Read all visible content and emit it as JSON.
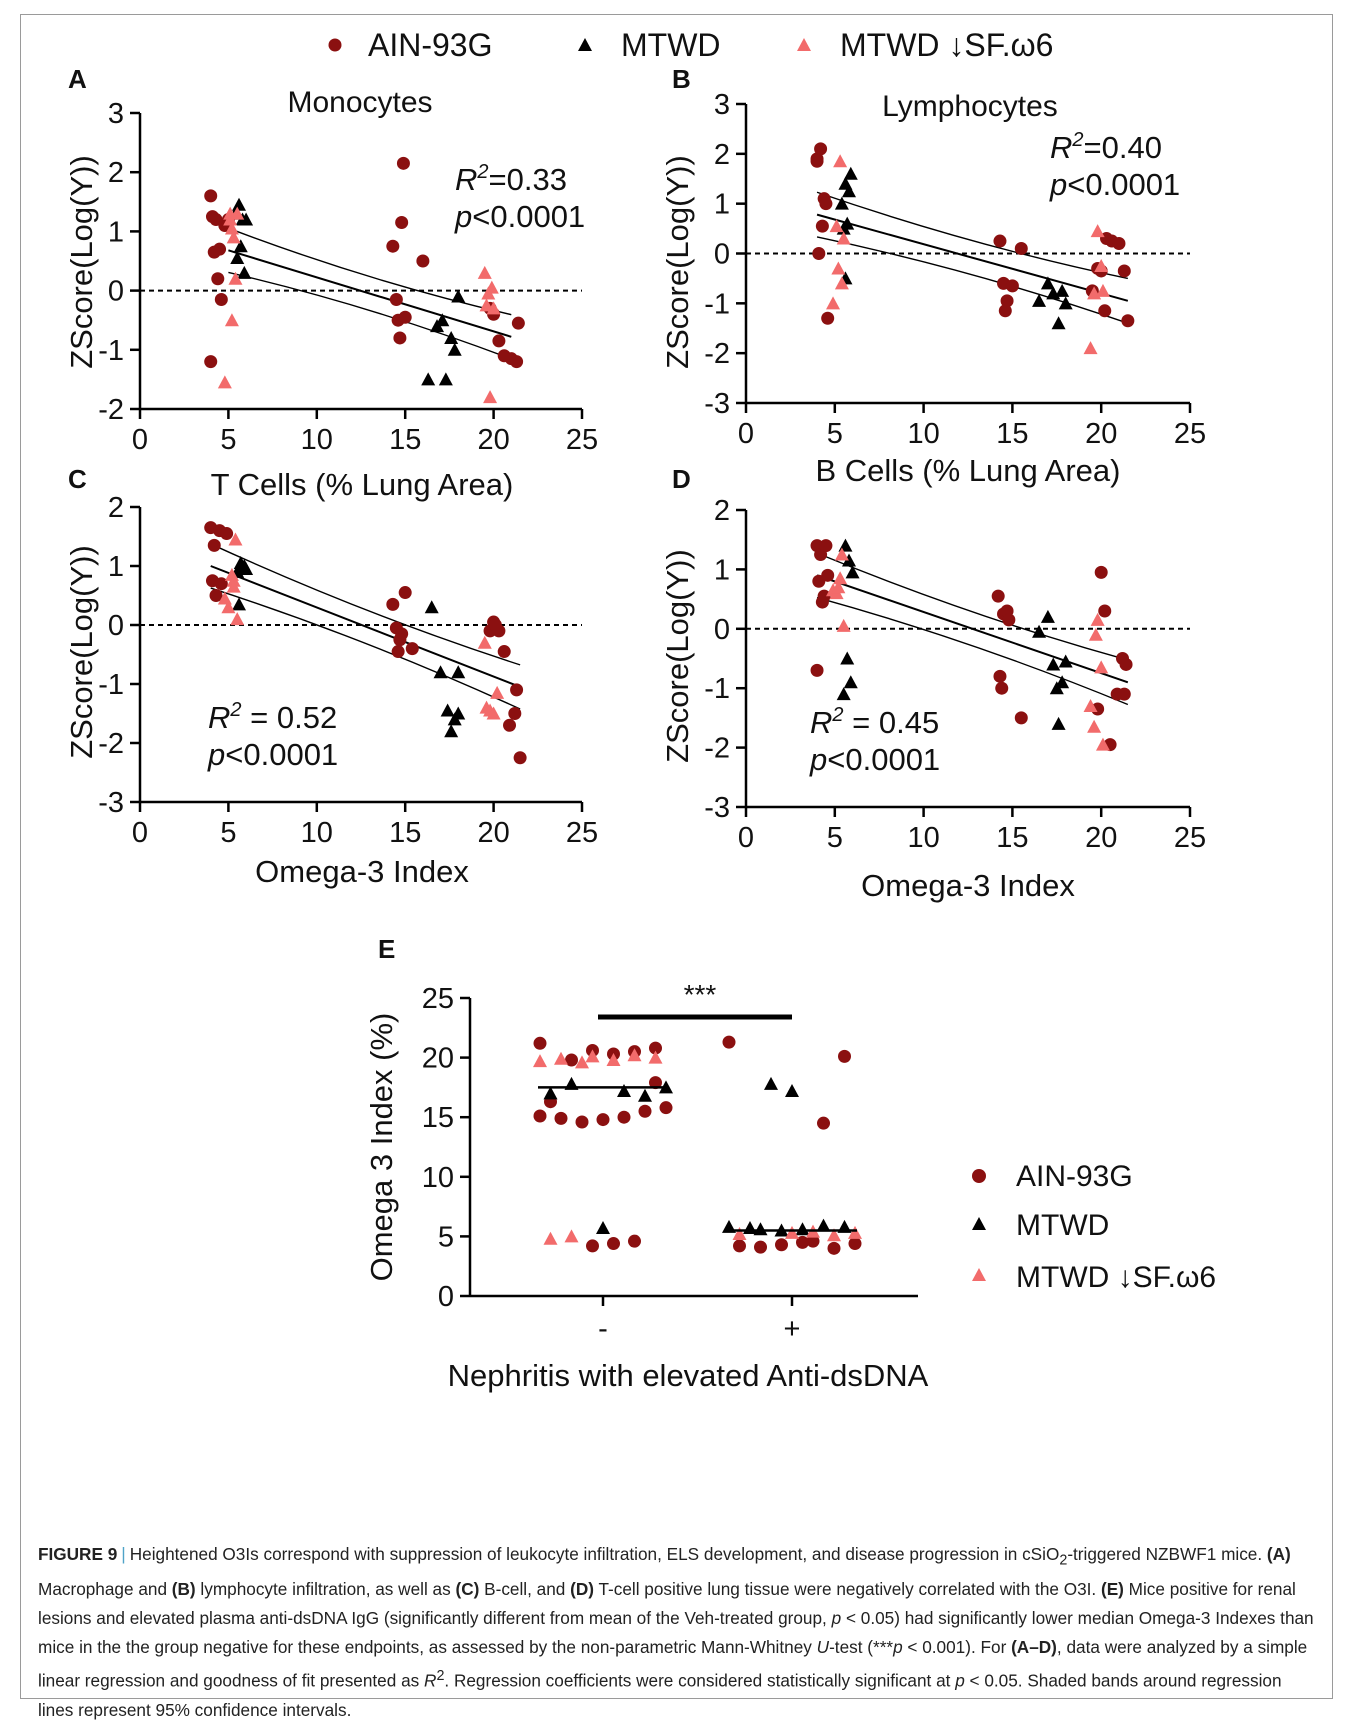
{
  "colors": {
    "ain": "#8b1010",
    "mtwd": "#000000",
    "mtwd_sf": "#f26b6b",
    "caption_sep": "#4fa3c8"
  },
  "legend": {
    "ain": "AIN-93G",
    "mtwd": "MTWD",
    "mtwd_sf": "MTWD ↓SF.ω6"
  },
  "caption": {
    "lead": "FIGURE 9",
    "sep": "|",
    "p1": "Heightened O3Is correspond with suppression of leukocyte infiltration, ELS development, and disease progression in cSiO",
    "p1_sub": "2",
    "p1_end": "-triggered NZBWF1 mice. ",
    "A": "(A)",
    "p2": " Macrophage and ",
    "B": "(B)",
    "p3": " lymphocyte infiltration, as well as ",
    "C": "(C)",
    "p4": " B-cell, and ",
    "D": "(D)",
    "p5": " T-cell positive lung tissue were negatively correlated with the O3I. ",
    "E": "(E)",
    "p6": " Mice positive for renal lesions and elevated plasma anti-dsDNA IgG (significantly different from mean of the Veh-treated group, ",
    "p6_p": "p",
    "p6_end": " < 0.05) had significantly lower median Omega-3 Indexes than mice in the the group negative for these endpoints, as assessed by the non-parametric Mann-Whitney ",
    "u": "U",
    "p7": "-test (***",
    "p7_p": "p",
    "p7_end": " < 0.001). For ",
    "AD": "(A–D)",
    "p8": ", data were analyzed by a simple linear regression and goodness of fit presented as ",
    "r": "R",
    "r_sup": "2",
    "p9": ". Regression coefficients were considered statistically significant at ",
    "p9_p": "p",
    "p9_end": " < 0.05. Shaded bands around regression lines represent 95% confidence intervals."
  },
  "chart_data": [
    {
      "panel": "A",
      "type": "scatter",
      "title": "Monocytes",
      "xlabel": "T Cells (% Lung Area)",
      "ylabel": "ZScore(Log(Y))",
      "xlim": [
        0,
        25
      ],
      "ylim": [
        -2,
        3
      ],
      "xticks": [
        "0",
        "5",
        "10",
        "15",
        "20",
        "25"
      ],
      "yticks": [
        "-2",
        "-1",
        "0",
        "1",
        "2",
        "3"
      ],
      "r2_label": "R",
      "r2_sup": "2",
      "r2_value": "=0.33",
      "p_label": "p",
      "p_value": "<0.0001",
      "fit": {
        "x0": 5,
        "y0": 0.68,
        "x1": 21,
        "y1": -0.78
      },
      "series": [
        {
          "group": "ain",
          "x": [
            4,
            4.1,
            4.3,
            4.5,
            4.2,
            4.0,
            4.4,
            4.6,
            4.8,
            5.0,
            14.3,
            14.6,
            14.8,
            14.5,
            15.0,
            14.9,
            16.0,
            14.7,
            19.8,
            20.3,
            20.0,
            20.6,
            21.0,
            21.3,
            21.4
          ],
          "y": [
            1.6,
            1.25,
            1.2,
            0.7,
            0.65,
            -1.2,
            0.2,
            -0.15,
            1.1,
            1.2,
            0.75,
            -0.5,
            1.15,
            -0.15,
            -0.45,
            2.15,
            0.5,
            -0.8,
            -0.3,
            -0.85,
            -0.4,
            -1.1,
            -1.15,
            -1.2,
            -0.55
          ]
        },
        {
          "group": "mtwd",
          "x": [
            5.4,
            5.6,
            5.8,
            5.7,
            6.0,
            5.5,
            5.9,
            16.3,
            16.8,
            17.1,
            17.3,
            17.6,
            17.8,
            18.0
          ],
          "y": [
            1.3,
            1.45,
            1.2,
            0.75,
            1.2,
            0.55,
            0.3,
            -1.5,
            -0.6,
            -0.5,
            -1.5,
            -0.8,
            -1.0,
            -0.1
          ]
        },
        {
          "group": "mtwd_sf",
          "x": [
            4.8,
            5.1,
            5.2,
            5.3,
            5.4,
            5.2,
            5.5,
            5.1,
            19.5,
            19.6,
            19.8,
            19.9,
            20.0,
            19.7
          ],
          "y": [
            -1.55,
            1.2,
            1.05,
            0.9,
            0.2,
            -0.5,
            1.3,
            1.3,
            0.3,
            -0.25,
            -1.8,
            0.05,
            -0.3,
            -0.05
          ]
        }
      ]
    },
    {
      "panel": "B",
      "type": "scatter",
      "title": "Lymphocytes",
      "xlabel": "B Cells (% Lung Area)",
      "ylabel": "ZScore(Log(Y))",
      "xlim": [
        0,
        25
      ],
      "ylim": [
        -3,
        3
      ],
      "xticks": [
        "0",
        "5",
        "10",
        "15",
        "20",
        "25"
      ],
      "yticks": [
        "-3",
        "-2",
        "-1",
        "0",
        "1",
        "2",
        "3"
      ],
      "r2_label": "R",
      "r2_sup": "2",
      "r2_value": "=0.40",
      "p_label": "p",
      "p_value": "<0.0001",
      "fit": {
        "x0": 4,
        "y0": 0.78,
        "x1": 21.5,
        "y1": -0.95
      },
      "series": [
        {
          "group": "ain",
          "x": [
            4.0,
            4.2,
            4.4,
            4.3,
            4.1,
            4.5,
            4.6,
            4.0,
            14.3,
            14.5,
            14.7,
            14.6,
            15.0,
            15.5,
            19.5,
            19.8,
            20.0,
            20.3,
            20.6,
            21.0,
            21.3,
            21.5,
            20.2
          ],
          "y": [
            1.9,
            2.1,
            1.1,
            0.55,
            0.0,
            1.0,
            -1.3,
            1.85,
            0.25,
            -0.6,
            -0.95,
            -1.15,
            -0.65,
            0.1,
            -0.75,
            -0.3,
            -0.35,
            0.3,
            0.25,
            0.2,
            -0.35,
            -1.35,
            -1.15
          ]
        },
        {
          "group": "mtwd",
          "x": [
            5.4,
            5.6,
            5.8,
            5.9,
            5.7,
            5.5,
            5.6,
            16.5,
            17.0,
            17.3,
            17.6,
            17.8,
            18.0
          ],
          "y": [
            1.0,
            1.4,
            1.25,
            1.6,
            0.6,
            0.5,
            -0.5,
            -0.95,
            -0.6,
            -0.8,
            -1.4,
            -0.75,
            -1.0
          ]
        },
        {
          "group": "mtwd_sf",
          "x": [
            4.9,
            5.1,
            5.3,
            5.5,
            5.2,
            5.4,
            19.4,
            19.6,
            19.8,
            20.0,
            20.1
          ],
          "y": [
            -1.0,
            0.55,
            1.85,
            0.3,
            -0.3,
            -0.6,
            -1.9,
            -0.8,
            0.45,
            -0.25,
            -0.75
          ]
        }
      ]
    },
    {
      "panel": "C",
      "type": "scatter",
      "title": "",
      "xlabel": "Omega-3 Index",
      "ylabel": "ZScore(Log(Y))",
      "xlim": [
        0,
        25
      ],
      "ylim": [
        -3,
        2
      ],
      "xticks": [
        "0",
        "5",
        "10",
        "15",
        "20",
        "25"
      ],
      "yticks": [
        "-3",
        "-2",
        "-1",
        "0",
        "1",
        "2"
      ],
      "r2_label": "R",
      "r2_sup": "2",
      "r2_value": " = 0.52",
      "p_label": "p",
      "p_value": "<0.0001",
      "fit": {
        "x0": 4,
        "y0": 1.0,
        "x1": 21.5,
        "y1": -1.05
      },
      "series": [
        {
          "group": "ain",
          "x": [
            4.0,
            4.2,
            4.5,
            4.9,
            4.1,
            4.3,
            4.6,
            14.3,
            14.5,
            14.6,
            14.8,
            15.0,
            15.4,
            14.7,
            19.8,
            20.0,
            20.3,
            20.6,
            20.9,
            21.2,
            21.3,
            21.5,
            20.1
          ],
          "y": [
            1.65,
            1.35,
            1.6,
            1.55,
            0.75,
            0.5,
            0.7,
            0.35,
            -0.05,
            -0.45,
            -0.15,
            0.55,
            -0.4,
            -0.25,
            -0.1,
            0.05,
            -0.1,
            -0.45,
            -1.7,
            -1.5,
            -1.1,
            -2.25,
            0.0
          ]
        },
        {
          "group": "mtwd",
          "x": [
            5.5,
            5.7,
            5.9,
            6.0,
            5.6,
            16.5,
            17.0,
            17.4,
            17.6,
            17.8,
            18.0,
            18.0
          ],
          "y": [
            0.9,
            1.05,
            1.0,
            0.95,
            0.35,
            0.3,
            -0.8,
            -1.45,
            -1.8,
            -1.6,
            -1.5,
            -0.8
          ]
        },
        {
          "group": "mtwd_sf",
          "x": [
            4.8,
            5.0,
            5.2,
            5.3,
            5.4,
            5.5,
            5.3,
            19.5,
            19.6,
            19.8,
            20.0,
            20.2
          ],
          "y": [
            0.45,
            0.3,
            0.85,
            0.75,
            1.45,
            0.1,
            0.65,
            -0.3,
            -1.4,
            -1.45,
            -1.5,
            -1.15
          ]
        }
      ]
    },
    {
      "panel": "D",
      "type": "scatter",
      "title": "",
      "xlabel": "Omega-3 Index",
      "ylabel": "ZScore(Log(Y))",
      "xlim": [
        0,
        25
      ],
      "ylim": [
        -3,
        2
      ],
      "xticks": [
        "0",
        "5",
        "10",
        "15",
        "20",
        "25"
      ],
      "yticks": [
        "-3",
        "-2",
        "-1",
        "0",
        "1",
        "2"
      ],
      "r2_label": "R",
      "r2_sup": "2",
      "r2_value": " = 0.45",
      "p_label": "p",
      "p_value": "<0.0001",
      "fit": {
        "x0": 4,
        "y0": 0.9,
        "x1": 21.5,
        "y1": -0.9
      },
      "series": [
        {
          "group": "ain",
          "x": [
            4.0,
            4.2,
            4.5,
            4.1,
            4.3,
            4.6,
            4.0,
            4.4,
            14.2,
            14.5,
            14.7,
            14.8,
            14.3,
            15.5,
            14.4,
            19.8,
            20.0,
            20.2,
            20.5,
            20.9,
            21.2,
            21.4,
            21.3
          ],
          "y": [
            1.4,
            1.25,
            1.4,
            0.8,
            0.45,
            0.9,
            -0.7,
            0.55,
            0.55,
            0.25,
            0.3,
            0.15,
            -0.8,
            -1.5,
            -1.0,
            -1.35,
            0.95,
            0.3,
            -1.95,
            -1.1,
            -0.5,
            -0.6,
            -1.1
          ]
        },
        {
          "group": "mtwd",
          "x": [
            5.6,
            5.8,
            6.0,
            5.7,
            5.5,
            5.9,
            16.5,
            17.0,
            17.3,
            17.6,
            17.8,
            18.0,
            17.5
          ],
          "y": [
            1.4,
            1.15,
            0.95,
            -0.5,
            -1.1,
            -0.9,
            -0.05,
            0.2,
            -0.6,
            -1.6,
            -0.9,
            -0.55,
            -1.0
          ]
        },
        {
          "group": "mtwd_sf",
          "x": [
            4.9,
            5.1,
            5.3,
            5.4,
            5.2,
            5.5,
            19.4,
            19.6,
            19.8,
            20.0,
            20.1,
            19.7
          ],
          "y": [
            0.65,
            0.6,
            0.85,
            1.25,
            0.7,
            0.05,
            -1.3,
            -1.65,
            0.15,
            -0.65,
            -1.95,
            -0.1
          ]
        }
      ]
    },
    {
      "panel": "E",
      "type": "scatter",
      "title": "",
      "xlabel": "Nephritis with elevated Anti-dsDNA",
      "ylabel": "Omega 3 Index (%)",
      "categories": [
        "-",
        "+"
      ],
      "ylim": [
        0,
        25
      ],
      "yticks": [
        "0",
        "5",
        "10",
        "15",
        "20",
        "25"
      ],
      "significance": "***",
      "medians": [
        17.5,
        5.5
      ],
      "series": [
        {
          "group": "ain",
          "category": [
            "-",
            "-",
            "-",
            "-",
            "-",
            "-",
            "-",
            "-",
            "-",
            "-",
            "-",
            "-",
            "-",
            "-",
            "-",
            "-",
            "-",
            "-",
            "+",
            "+",
            "+",
            "+",
            "+",
            "+",
            "+",
            "+",
            "+",
            "+"
          ],
          "y": [
            21.2,
            20.8,
            20.5,
            20.3,
            20.6,
            19.8,
            16.3,
            15.8,
            15.5,
            15.0,
            14.8,
            14.6,
            14.9,
            15.1,
            17.9,
            4.6,
            4.4,
            4.2,
            21.3,
            20.1,
            14.5,
            4.5,
            4.3,
            4.1,
            4.2,
            4.4,
            4.0,
            4.6
          ]
        },
        {
          "group": "mtwd",
          "category": [
            "-",
            "-",
            "-",
            "-",
            "-",
            "-",
            "+",
            "+",
            "+",
            "+",
            "+",
            "+",
            "+",
            "+",
            "+"
          ],
          "y": [
            17.8,
            17.0,
            17.5,
            16.8,
            17.2,
            5.7,
            17.2,
            17.8,
            5.7,
            5.8,
            5.8,
            5.9,
            5.6,
            5.5,
            5.6
          ]
        },
        {
          "group": "mtwd_sf",
          "category": [
            "-",
            "-",
            "-",
            "-",
            "-",
            "-",
            "-",
            "-",
            "-",
            "+",
            "+",
            "+",
            "+",
            "+"
          ],
          "y": [
            19.6,
            19.9,
            19.7,
            20.0,
            20.2,
            19.8,
            20.1,
            5.0,
            4.8,
            5.2,
            5.3,
            5.1,
            5.4,
            5.3
          ]
        }
      ]
    }
  ]
}
